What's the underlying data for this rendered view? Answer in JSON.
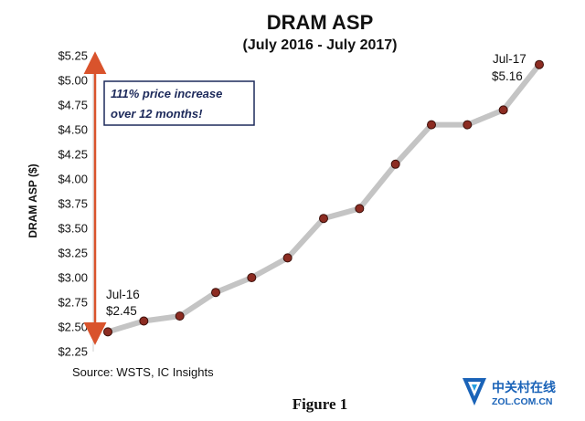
{
  "chart_data": {
    "type": "line",
    "title": "DRAM ASP",
    "subtitle": "(July 2016 - July 2017)",
    "ylabel": "DRAM ASP ($)",
    "xlabel": "",
    "ylim": [
      2.25,
      5.25
    ],
    "yticks": [
      2.25,
      2.5,
      2.75,
      3.0,
      3.25,
      3.5,
      3.75,
      4.0,
      4.25,
      4.5,
      4.75,
      5.0,
      5.25
    ],
    "ytick_labels": [
      "$2.25",
      "$2.50",
      "$2.75",
      "$3.00",
      "$3.25",
      "$3.50",
      "$3.75",
      "$4.00",
      "$4.25",
      "$4.50",
      "$4.75",
      "$5.00",
      "$5.25"
    ],
    "series": [
      {
        "name": "DRAM ASP",
        "values": [
          2.45,
          2.56,
          2.61,
          2.85,
          3.0,
          3.2,
          3.6,
          3.7,
          4.15,
          4.55,
          4.55,
          4.7,
          5.16
        ]
      }
    ],
    "line_color": "#c4c4c4",
    "marker_color": "#8c2c22",
    "arrow_color": "#d9532c",
    "annotations": {
      "start_label": "Jul-16",
      "start_value": "$2.45",
      "end_label": "Jul-17",
      "end_value": "$5.16",
      "callout_line1": "111% price increase",
      "callout_line2": "over 12 months!"
    },
    "source": "Source:  WSTS, IC Insights",
    "figure_caption": "Figure 1"
  },
  "watermark": {
    "text_cn": "中关村在线",
    "text_en": "ZOL.COM.CN"
  }
}
